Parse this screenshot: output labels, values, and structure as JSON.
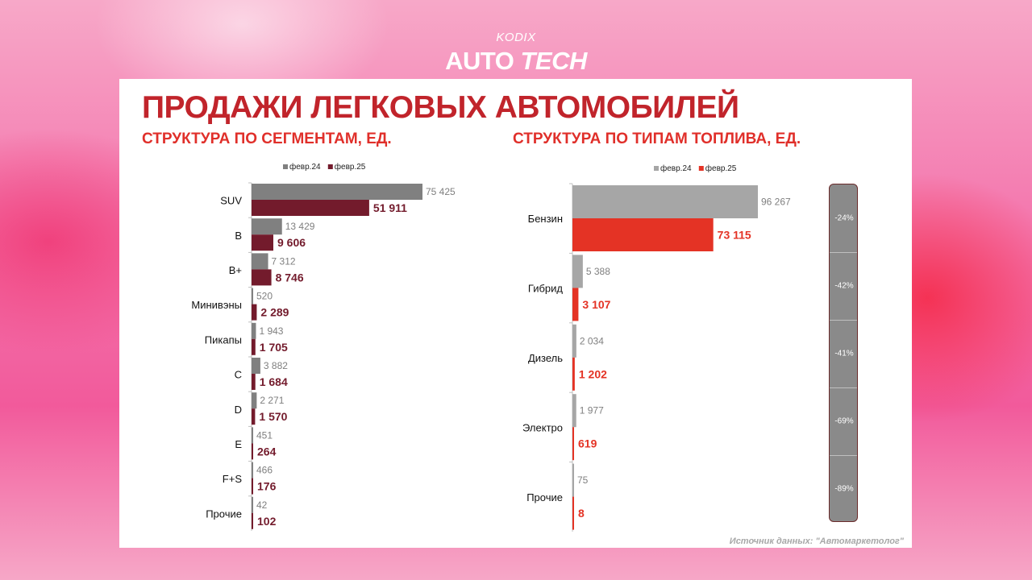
{
  "brand": {
    "small": "KODIX",
    "big_1": "AUTO",
    "big_2": "TECH"
  },
  "title": "ПРОДАЖИ ЛЕГКОВЫХ АВТОМОБИЛЕЙ",
  "subtitle_left": "СТРУКТУРА ПО СЕГМЕНТАМ, ЕД.",
  "subtitle_right": "СТРУКТУРА ПО ТИПАМ ТОПЛИВА, ЕД.",
  "source": "Источник данных: \"Автомаркетолог\"",
  "colors": {
    "prev": "#808080",
    "cur_left": "#731b2c",
    "prev_right": "#a6a6a6",
    "cur_right": "#e43325",
    "title": "#c1242b"
  },
  "chart_data": [
    {
      "type": "bar",
      "orientation": "horizontal",
      "title": "СТРУКТУРА ПО СЕГМЕНТАМ, ЕД.",
      "legend_position": "top",
      "categories": [
        "SUV",
        "B",
        "B+",
        "Минивэны",
        "Пикапы",
        "C",
        "D",
        "E",
        "F+S",
        "Прочие"
      ],
      "series": [
        {
          "name": "февр.24",
          "values": [
            75425,
            13429,
            7312,
            520,
            1943,
            3882,
            2271,
            451,
            466,
            42
          ],
          "labels": [
            "75 425",
            "13 429",
            "7 312",
            "520",
            "1 943",
            "3 882",
            "2 271",
            "451",
            "466",
            "42"
          ]
        },
        {
          "name": "февр.25",
          "values": [
            51911,
            9606,
            8746,
            2289,
            1705,
            1684,
            1570,
            264,
            176,
            102
          ],
          "labels": [
            "51 911",
            "9 606",
            "8 746",
            "2 289",
            "1 705",
            "1 684",
            "1 570",
            "264",
            "176",
            "102"
          ]
        }
      ]
    },
    {
      "type": "bar",
      "orientation": "horizontal",
      "title": "СТРУКТУРА ПО ТИПАМ ТОПЛИВА, ЕД.",
      "legend_position": "top",
      "categories": [
        "Бензин",
        "Гибрид",
        "Дизель",
        "Электро",
        "Прочие"
      ],
      "series": [
        {
          "name": "февр.24",
          "values": [
            96267,
            5388,
            2034,
            1977,
            75
          ],
          "labels": [
            "96 267",
            "5 388",
            "2 034",
            "1 977",
            "75"
          ]
        },
        {
          "name": "февр.25",
          "values": [
            73115,
            3107,
            1202,
            619,
            8
          ],
          "labels": [
            "73 115",
            "3 107",
            "1 202",
            "619",
            "8"
          ]
        }
      ],
      "change": [
        "-24%",
        "-42%",
        "-41%",
        "-69%",
        "-89%"
      ]
    }
  ]
}
